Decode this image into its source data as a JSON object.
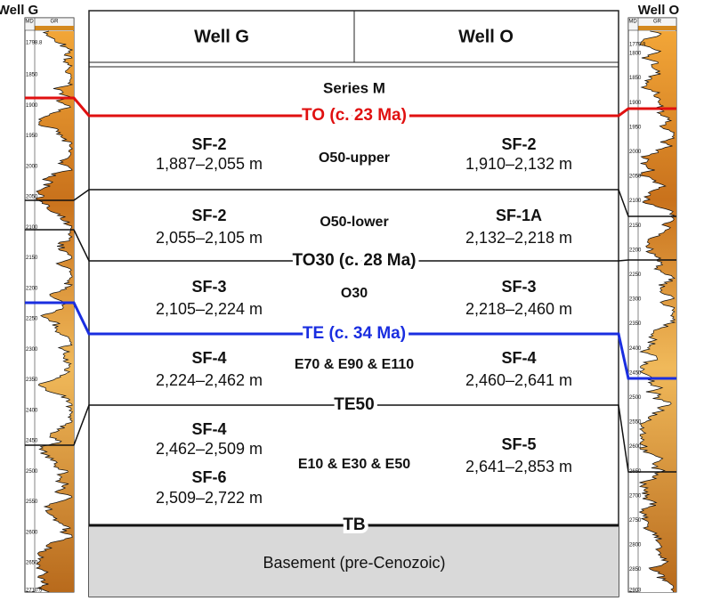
{
  "wells": [
    {
      "title": "Well G",
      "md": "MD",
      "gr": "GR",
      "depths": [
        "1798.8",
        "1850",
        "1900",
        "1950",
        "2000",
        "2050",
        "2100",
        "2150",
        "2200",
        "2250",
        "2300",
        "2350",
        "2400",
        "2450",
        "2500",
        "2550",
        "2600",
        "2650",
        "2710.5"
      ]
    },
    {
      "title": "Well O",
      "md": "MD",
      "gr": "GR",
      "depths": [
        "1779.9",
        "1800",
        "1850",
        "1900",
        "1950",
        "2000",
        "2050",
        "2100",
        "2150",
        "2200",
        "2250",
        "2300",
        "2350",
        "2400",
        "2450",
        "2500",
        "2550",
        "2600",
        "2650",
        "2700",
        "2750",
        "2800",
        "2850",
        "2903"
      ]
    }
  ],
  "table": {
    "headers": [
      "Well G",
      "Well O"
    ],
    "horizons": {
      "series": "Series M",
      "to": "TO (c. 23 Ma)",
      "to30": "TO30 (c. 28 Ma)",
      "te": "TE (c. 34 Ma)",
      "te50": "TE50",
      "tb": "TB"
    },
    "zones": [
      {
        "left": [
          [
            "SF-2",
            "1,887–2,055 m"
          ]
        ],
        "center": "O50-upper",
        "right": [
          [
            "SF-2",
            "1,910–2,132 m"
          ]
        ]
      },
      {
        "left": [
          [
            "SF-2",
            "2,055–2,105 m"
          ]
        ],
        "center": "O50-lower",
        "right": [
          [
            "SF-1A",
            "2,132–2,218 m"
          ]
        ]
      },
      {
        "left": [
          [
            "SF-3",
            "2,105–2,224 m"
          ]
        ],
        "center": "O30",
        "right": [
          [
            "SF-3",
            "2,218–2,460 m"
          ]
        ]
      },
      {
        "left": [
          [
            "SF-4",
            "2,224–2,462 m"
          ]
        ],
        "center": "E70 & E90 & E110",
        "right": [
          [
            "SF-4",
            "2,460–2,641 m"
          ]
        ]
      },
      {
        "left": [
          [
            "SF-4",
            "2,462–2,509 m"
          ],
          [
            "SF-6",
            "2,509–2,722 m"
          ]
        ],
        "center": "E10 & E30 & E50",
        "right": [
          [
            "SF-5",
            "2,641–2,853 m"
          ]
        ]
      }
    ],
    "basement": "Basement (pre-Cenozoic)"
  }
}
